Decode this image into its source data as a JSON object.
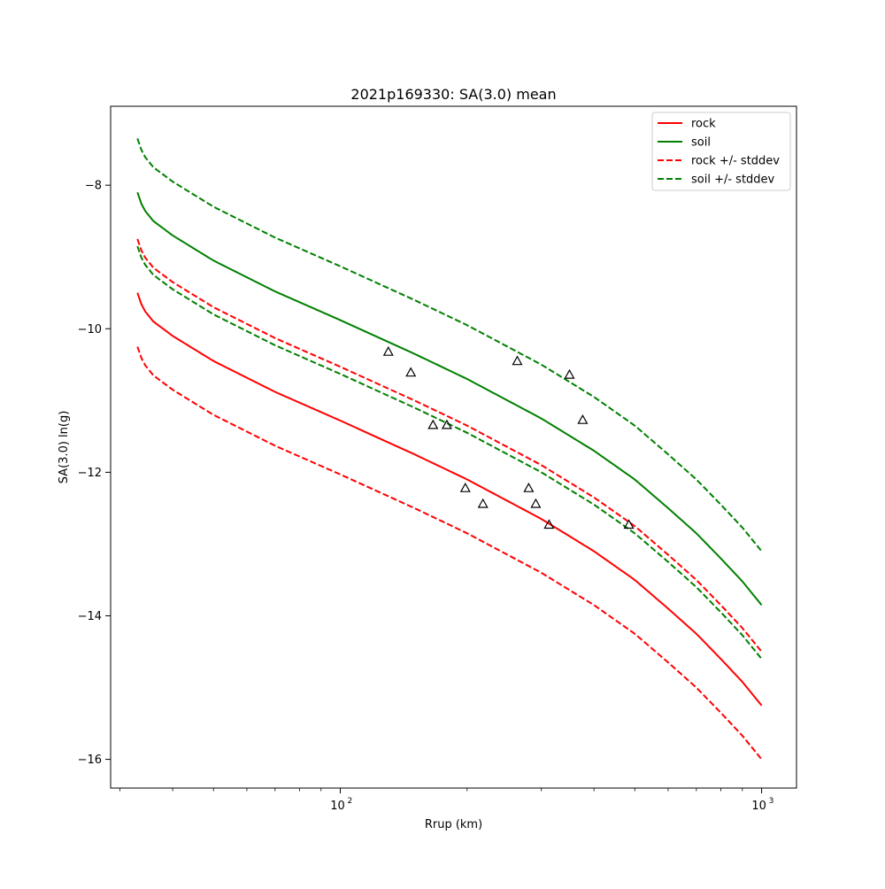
{
  "chart_data": {
    "type": "line",
    "title": "2021p169330: SA(3.0) mean",
    "xlabel": "Rrup (km)",
    "ylabel": "SA(3.0) ln(g)",
    "x_scale": "log",
    "xlim": [
      28.5,
      1210
    ],
    "ylim": [
      -16.4,
      -6.9
    ],
    "grid": false,
    "legend_position": "top-right",
    "x_major_ticks": [
      {
        "value": 100,
        "base": "10",
        "exp": "2"
      },
      {
        "value": 1000,
        "base": "10",
        "exp": "3"
      }
    ],
    "y_ticks": [
      {
        "value": -8,
        "label": "−8"
      },
      {
        "value": -10,
        "label": "−10"
      },
      {
        "value": -12,
        "label": "−12"
      },
      {
        "value": -14,
        "label": "−14"
      },
      {
        "value": -16,
        "label": "−16"
      }
    ],
    "series": [
      {
        "name": "rock",
        "color": "#ff0000",
        "style": "solid",
        "x": [
          33,
          34,
          36,
          40,
          50,
          70,
          100,
          150,
          200,
          300,
          400,
          500,
          600,
          700,
          800,
          900,
          1000
        ],
        "y": [
          -9.5,
          -9.72,
          -9.9,
          -10.1,
          -10.45,
          -10.88,
          -11.28,
          -11.75,
          -12.1,
          -12.65,
          -13.1,
          -13.5,
          -13.9,
          -14.25,
          -14.6,
          -14.92,
          -15.25
        ]
      },
      {
        "name": "soil",
        "color": "#008000",
        "style": "solid",
        "x": [
          33,
          34,
          36,
          40,
          50,
          70,
          100,
          150,
          200,
          300,
          400,
          500,
          600,
          700,
          800,
          900,
          1000
        ],
        "y": [
          -8.1,
          -8.32,
          -8.5,
          -8.7,
          -9.05,
          -9.48,
          -9.88,
          -10.35,
          -10.7,
          -11.25,
          -11.7,
          -12.1,
          -12.5,
          -12.85,
          -13.2,
          -13.52,
          -13.85
        ]
      },
      {
        "name": "rock +/- stddev",
        "color": "#ff0000",
        "style": "dashed",
        "x": [
          33,
          34,
          36,
          40,
          50,
          70,
          100,
          150,
          200,
          300,
          400,
          500,
          600,
          700,
          800,
          900,
          1000
        ],
        "y": [
          -8.75,
          -8.97,
          -9.15,
          -9.35,
          -9.7,
          -10.13,
          -10.53,
          -11.0,
          -11.35,
          -11.9,
          -12.35,
          -12.75,
          -13.15,
          -13.5,
          -13.85,
          -14.17,
          -14.5
        ]
      },
      {
        "name": "",
        "color": "#ff0000",
        "style": "dashed",
        "x": [
          33,
          34,
          36,
          40,
          50,
          70,
          100,
          150,
          200,
          300,
          400,
          500,
          600,
          700,
          800,
          900,
          1000
        ],
        "y": [
          -10.25,
          -10.47,
          -10.65,
          -10.85,
          -11.2,
          -11.63,
          -12.03,
          -12.5,
          -12.85,
          -13.4,
          -13.85,
          -14.25,
          -14.65,
          -15.0,
          -15.35,
          -15.67,
          -16.0
        ]
      },
      {
        "name": "soil +/- stddev",
        "color": "#008000",
        "style": "dashed",
        "x": [
          33,
          34,
          36,
          40,
          50,
          70,
          100,
          150,
          200,
          300,
          400,
          500,
          600,
          700,
          800,
          900,
          1000
        ],
        "y": [
          -7.35,
          -7.57,
          -7.75,
          -7.95,
          -8.3,
          -8.73,
          -9.13,
          -9.6,
          -9.95,
          -10.5,
          -10.95,
          -11.35,
          -11.75,
          -12.1,
          -12.45,
          -12.77,
          -13.1
        ]
      },
      {
        "name": "",
        "color": "#008000",
        "style": "dashed",
        "x": [
          33,
          34,
          36,
          40,
          50,
          70,
          100,
          150,
          200,
          300,
          400,
          500,
          600,
          700,
          800,
          900,
          1000
        ],
        "y": [
          -8.85,
          -9.07,
          -9.25,
          -9.45,
          -9.8,
          -10.23,
          -10.63,
          -11.1,
          -11.45,
          -12.0,
          -12.45,
          -12.85,
          -13.25,
          -13.6,
          -13.95,
          -14.27,
          -14.6
        ]
      }
    ],
    "observations": {
      "marker": "triangle",
      "x": [
        130,
        147,
        166,
        179,
        198,
        218,
        263,
        280,
        291,
        313,
        350,
        376,
        484
      ],
      "y": [
        -10.32,
        -10.61,
        -11.34,
        -11.34,
        -12.22,
        -12.44,
        -10.45,
        -12.22,
        -12.44,
        -12.73,
        -10.64,
        -11.27,
        -12.73
      ]
    },
    "legend": [
      "rock",
      "soil",
      "rock +/- stddev",
      "soil +/- stddev"
    ]
  }
}
